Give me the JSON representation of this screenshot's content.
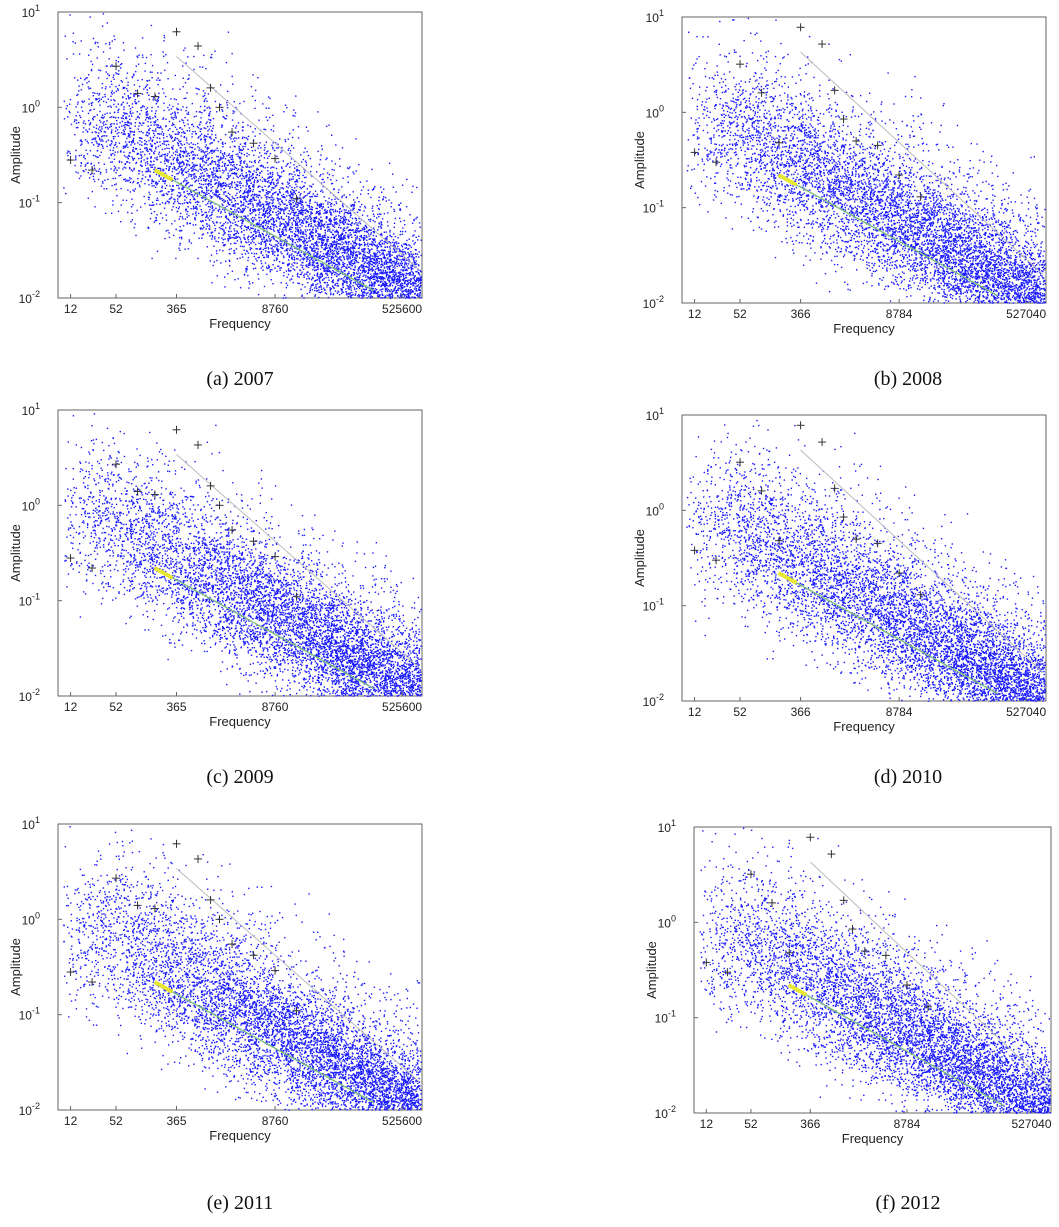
{
  "figure": {
    "panels": [
      {
        "caption": "(a) 2007"
      },
      {
        "caption": "(b) 2008"
      },
      {
        "caption": "(c) 2009"
      },
      {
        "caption": "(d) 2010"
      },
      {
        "caption": "(e) 2011"
      },
      {
        "caption": "(f) 2012"
      }
    ]
  },
  "colors": {
    "points": "#1a1aff",
    "peaks": "#333333",
    "trend": "#7fbf7f",
    "highlight": "#e6e633",
    "envelope": "#bbbbbb",
    "axes": "#666666"
  },
  "chart_data": [
    {
      "type": "scatter",
      "title": "",
      "caption": "(a) 2007",
      "xlabel": "Frequency",
      "ylabel": "Amplitude",
      "xscale": "log",
      "yscale": "log",
      "xlim": [
        8,
        1000000
      ],
      "ylim": [
        0.01,
        10
      ],
      "xticks": [
        12,
        52,
        365,
        8760,
        525600
      ],
      "yticks": [
        {
          "value": 0.01,
          "base": "10",
          "exp": "-2"
        },
        {
          "value": 0.1,
          "base": "10",
          "exp": "-1"
        },
        {
          "value": 1,
          "base": "10",
          "exp": "0"
        },
        {
          "value": 10,
          "base": "10",
          "exp": "1"
        }
      ],
      "grid": false,
      "peaks": {
        "x": [
          12,
          24,
          52,
          104,
          182,
          365,
          730,
          1095,
          1460,
          2190,
          4380,
          8760,
          17520
        ],
        "y": [
          0.28,
          0.22,
          2.7,
          1.4,
          1.3,
          6.2,
          4.4,
          1.6,
          1.0,
          0.55,
          0.42,
          0.29,
          0.11
        ]
      },
      "trend": {
        "x": [
          180,
          210000
        ],
        "y": [
          0.22,
          0.012
        ]
      },
      "cloud": {
        "fit_x": [
          365,
          500000
        ],
        "fit_y": [
          0.25,
          0.012
        ],
        "n": 7000
      }
    },
    {
      "type": "scatter",
      "title": "",
      "caption": "(b) 2008",
      "xlabel": "Frequency",
      "ylabel": "Amplitude",
      "xscale": "log",
      "yscale": "log",
      "xlim": [
        8,
        1000000
      ],
      "ylim": [
        0.01,
        10
      ],
      "xticks": [
        12,
        52,
        366,
        8784,
        527040
      ],
      "yticks": [
        {
          "value": 0.01,
          "base": "10",
          "exp": "-2"
        },
        {
          "value": 0.1,
          "base": "10",
          "exp": "-1"
        },
        {
          "value": 1,
          "base": "10",
          "exp": "0"
        },
        {
          "value": 10,
          "base": "10",
          "exp": "1"
        }
      ],
      "grid": false,
      "peaks": {
        "x": [
          12,
          24,
          52,
          104,
          183,
          366,
          732,
          1098,
          1464,
          2196,
          4392,
          8784,
          17568
        ],
        "y": [
          0.38,
          0.3,
          3.2,
          1.6,
          0.48,
          7.8,
          5.2,
          1.7,
          0.85,
          0.5,
          0.45,
          0.22,
          0.13
        ]
      },
      "trend": {
        "x": [
          180,
          210000
        ],
        "y": [
          0.22,
          0.012
        ]
      },
      "cloud": {
        "fit_x": [
          366,
          500000
        ],
        "fit_y": [
          0.25,
          0.012
        ],
        "n": 7000
      }
    },
    {
      "type": "scatter",
      "title": "",
      "caption": "(c) 2009",
      "xlabel": "Frequency",
      "ylabel": "Amplitude",
      "xscale": "log",
      "yscale": "log",
      "xlim": [
        8,
        1000000
      ],
      "ylim": [
        0.01,
        10
      ],
      "xticks": [
        12,
        52,
        365,
        8760,
        525600
      ],
      "yticks": [
        {
          "value": 0.01,
          "base": "10",
          "exp": "-2"
        },
        {
          "value": 0.1,
          "base": "10",
          "exp": "-1"
        },
        {
          "value": 1,
          "base": "10",
          "exp": "0"
        },
        {
          "value": 10,
          "base": "10",
          "exp": "1"
        }
      ],
      "grid": false,
      "peaks": {
        "x": [
          12,
          24,
          52,
          104,
          182,
          365,
          730,
          1095,
          1460,
          2190,
          4380,
          8760,
          17520
        ],
        "y": [
          0.28,
          0.22,
          2.7,
          1.4,
          1.3,
          6.2,
          4.3,
          1.6,
          1.0,
          0.55,
          0.42,
          0.29,
          0.11
        ]
      },
      "trend": {
        "x": [
          180,
          210000
        ],
        "y": [
          0.22,
          0.012
        ]
      },
      "cloud": {
        "fit_x": [
          365,
          500000
        ],
        "fit_y": [
          0.25,
          0.012
        ],
        "n": 7000
      }
    },
    {
      "type": "scatter",
      "title": "",
      "caption": "(d) 2010",
      "xlabel": "Frequency",
      "ylabel": "Amplitude",
      "xscale": "log",
      "yscale": "log",
      "xlim": [
        8,
        1000000
      ],
      "ylim": [
        0.01,
        10
      ],
      "xticks": [
        12,
        52,
        366,
        8784,
        527040
      ],
      "yticks": [
        {
          "value": 0.01,
          "base": "10",
          "exp": "-2"
        },
        {
          "value": 0.1,
          "base": "10",
          "exp": "-1"
        },
        {
          "value": 1,
          "base": "10",
          "exp": "0"
        },
        {
          "value": 10,
          "base": "10",
          "exp": "1"
        }
      ],
      "grid": false,
      "peaks": {
        "x": [
          12,
          24,
          52,
          104,
          183,
          366,
          732,
          1098,
          1464,
          2196,
          4392,
          8784,
          17568
        ],
        "y": [
          0.38,
          0.3,
          3.2,
          1.6,
          0.48,
          7.8,
          5.2,
          1.7,
          0.85,
          0.5,
          0.45,
          0.22,
          0.13
        ]
      },
      "trend": {
        "x": [
          180,
          210000
        ],
        "y": [
          0.22,
          0.012
        ]
      },
      "cloud": {
        "fit_x": [
          366,
          500000
        ],
        "fit_y": [
          0.25,
          0.012
        ],
        "n": 7000
      }
    },
    {
      "type": "scatter",
      "title": "",
      "caption": "(e) 2011",
      "xlabel": "Frequency",
      "ylabel": "Amplitude",
      "xscale": "log",
      "yscale": "log",
      "xlim": [
        8,
        1000000
      ],
      "ylim": [
        0.01,
        10
      ],
      "xticks": [
        12,
        52,
        365,
        8760,
        525600
      ],
      "yticks": [
        {
          "value": 0.01,
          "base": "10",
          "exp": "-2"
        },
        {
          "value": 0.1,
          "base": "10",
          "exp": "-1"
        },
        {
          "value": 1,
          "base": "10",
          "exp": "0"
        },
        {
          "value": 10,
          "base": "10",
          "exp": "1"
        }
      ],
      "grid": false,
      "peaks": {
        "x": [
          12,
          24,
          52,
          104,
          182,
          365,
          730,
          1095,
          1460,
          2190,
          4380,
          8760,
          17520
        ],
        "y": [
          0.28,
          0.22,
          2.7,
          1.4,
          1.3,
          6.2,
          4.3,
          1.6,
          1.0,
          0.55,
          0.42,
          0.29,
          0.11
        ]
      },
      "trend": {
        "x": [
          180,
          210000
        ],
        "y": [
          0.22,
          0.012
        ]
      },
      "cloud": {
        "fit_x": [
          365,
          500000
        ],
        "fit_y": [
          0.25,
          0.012
        ],
        "n": 7000
      }
    },
    {
      "type": "scatter",
      "title": "",
      "caption": "(f) 2012",
      "xlabel": "Frequency",
      "ylabel": "Amplitude",
      "xscale": "log",
      "yscale": "log",
      "xlim": [
        8,
        1000000
      ],
      "ylim": [
        0.01,
        10
      ],
      "xticks": [
        12,
        52,
        366,
        8784,
        527040
      ],
      "yticks": [
        {
          "value": 0.01,
          "base": "10",
          "exp": "-2"
        },
        {
          "value": 0.1,
          "base": "10",
          "exp": "-1"
        },
        {
          "value": 1,
          "base": "10",
          "exp": "0"
        },
        {
          "value": 10,
          "base": "10",
          "exp": "1"
        }
      ],
      "grid": false,
      "peaks": {
        "x": [
          12,
          24,
          52,
          104,
          183,
          366,
          732,
          1098,
          1464,
          2196,
          4392,
          8784,
          17568
        ],
        "y": [
          0.38,
          0.3,
          3.2,
          1.6,
          0.48,
          7.8,
          5.2,
          1.7,
          0.85,
          0.5,
          0.45,
          0.22,
          0.13
        ]
      },
      "trend": {
        "x": [
          180,
          210000
        ],
        "y": [
          0.22,
          0.012
        ]
      },
      "cloud": {
        "fit_x": [
          366,
          500000
        ],
        "fit_y": [
          0.25,
          0.012
        ],
        "n": 7000
      }
    }
  ]
}
